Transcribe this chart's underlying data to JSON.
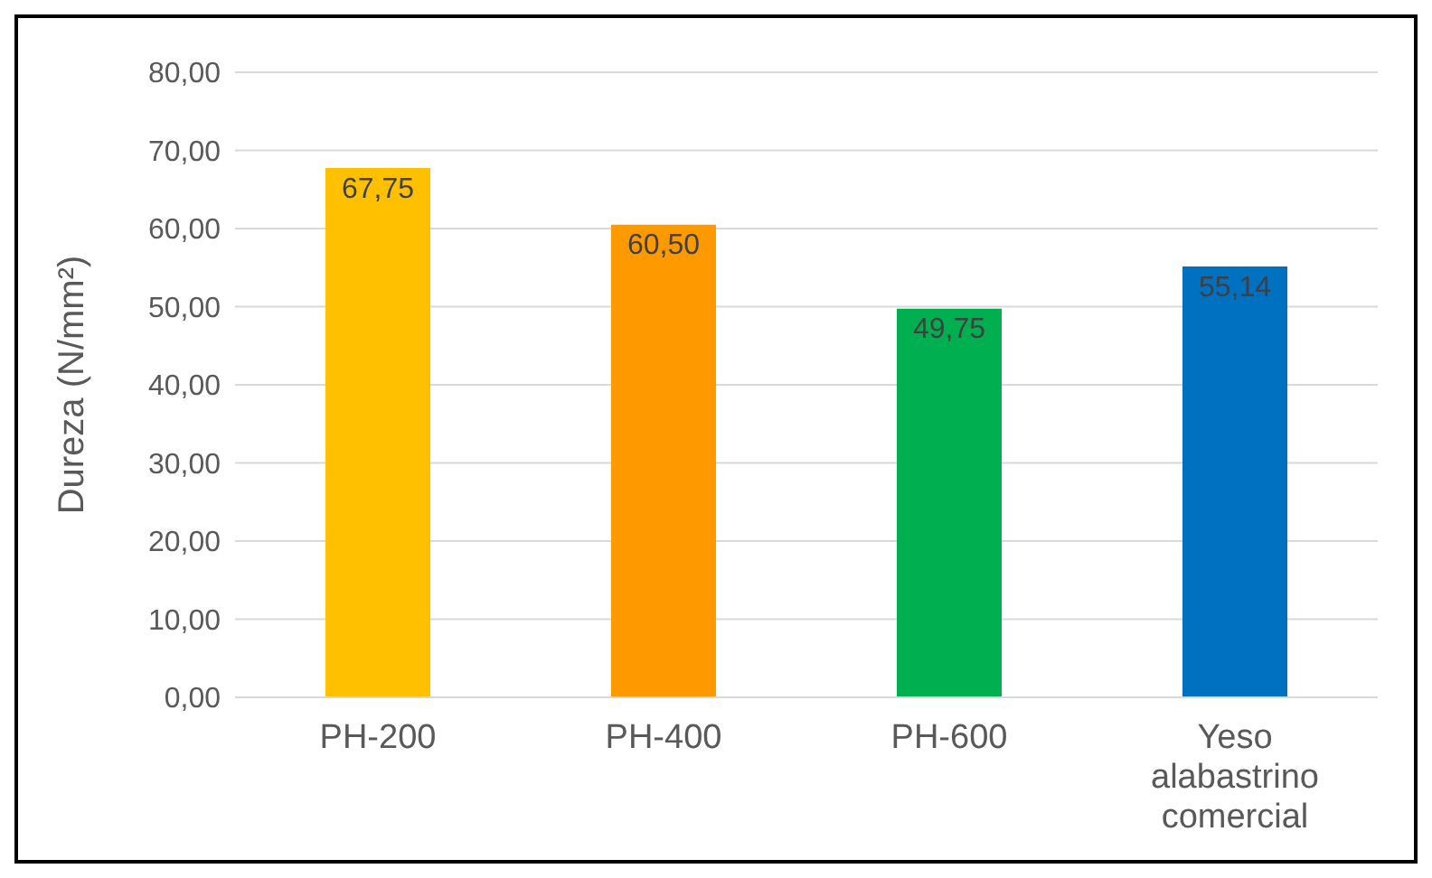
{
  "chart_data": {
    "type": "bar",
    "ylabel": "Dureza (N/mm²)",
    "categories": [
      "PH-200",
      "PH-400",
      "PH-600",
      "Yeso alabastrino comercial"
    ],
    "values": [
      67.75,
      60.5,
      49.75,
      55.14
    ],
    "colors": [
      "#ffc000",
      "#ff9900",
      "#00b050",
      "#0070c0"
    ],
    "value_labels": [
      "67,75",
      "60,50",
      "49,75",
      "55,14"
    ],
    "ylim": [
      0,
      80
    ],
    "yticks": [
      {
        "value": 0,
        "label": "0,00"
      },
      {
        "value": 10,
        "label": "10,00"
      },
      {
        "value": 20,
        "label": "20,00"
      },
      {
        "value": 30,
        "label": "30,00"
      },
      {
        "value": 40,
        "label": "40,00"
      },
      {
        "value": 50,
        "label": "50,00"
      },
      {
        "value": 60,
        "label": "60,00"
      },
      {
        "value": 70,
        "label": "70,00"
      },
      {
        "value": 80,
        "label": "80,00"
      }
    ],
    "grid": "y"
  }
}
